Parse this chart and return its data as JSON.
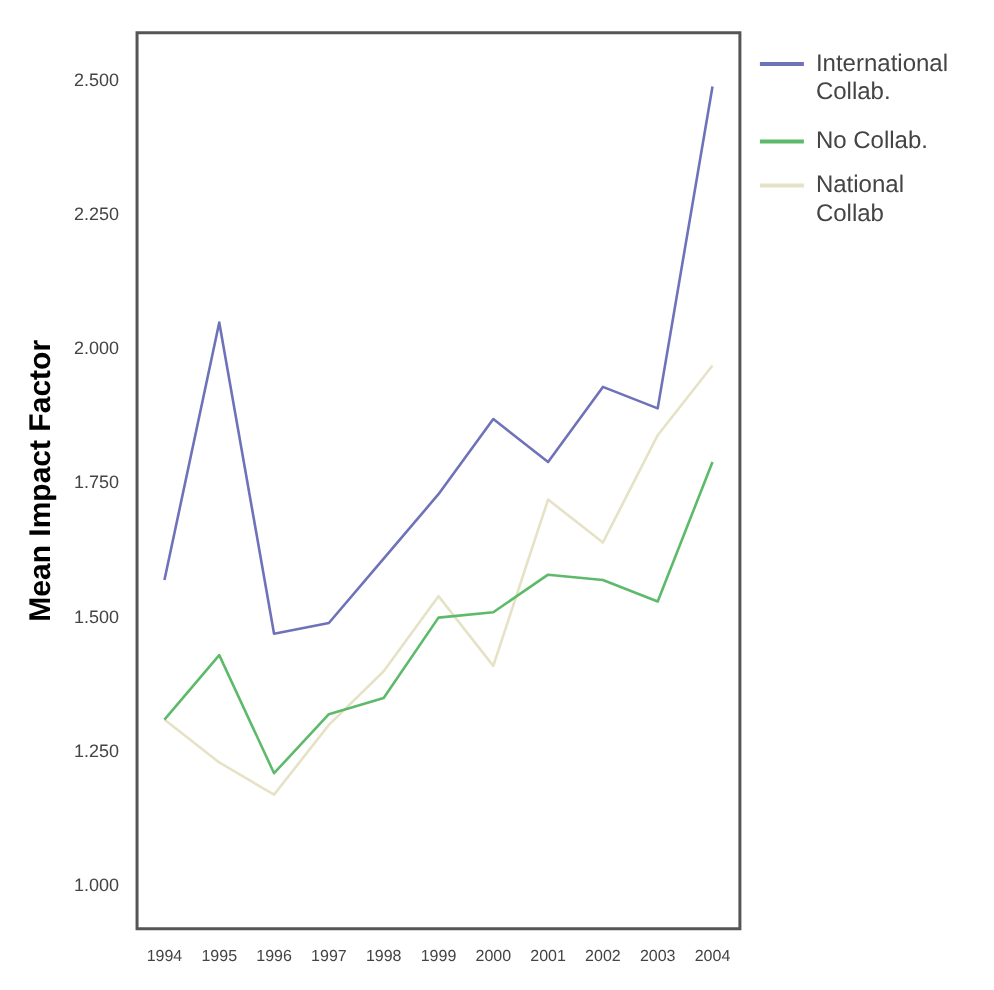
{
  "chart_data": {
    "type": "line",
    "ylabel": "Mean Impact Factor",
    "categories": [
      "1994",
      "1995",
      "1996",
      "1997",
      "1998",
      "1999",
      "2000",
      "2001",
      "2002",
      "2003",
      "2004"
    ],
    "series": [
      {
        "name": "International Collab.",
        "color": "#6e72b8",
        "values": [
          1.57,
          2.05,
          1.47,
          1.49,
          1.61,
          1.73,
          1.87,
          1.79,
          1.93,
          1.89,
          2.49
        ]
      },
      {
        "name": "No Collab.",
        "color": "#5dba6a",
        "values": [
          1.31,
          1.43,
          1.21,
          1.32,
          1.35,
          1.5,
          1.51,
          1.58,
          1.57,
          1.53,
          1.79
        ]
      },
      {
        "name": "National Collab",
        "color": "#e6e2c6",
        "values": [
          1.31,
          1.23,
          1.17,
          1.3,
          1.4,
          1.54,
          1.41,
          1.72,
          1.64,
          1.84,
          1.97
        ]
      }
    ],
    "ylim": [
      0.92,
      2.59
    ],
    "yticks": [
      {
        "value": 1,
        "label": "1.000"
      },
      {
        "value": 1.25,
        "label": "1.250"
      },
      {
        "value": 1.5,
        "label": "1.500"
      },
      {
        "value": 1.75,
        "label": "1.750"
      },
      {
        "value": 2,
        "label": "2.000"
      },
      {
        "value": 2.25,
        "label": "2.250"
      },
      {
        "value": 2.5,
        "label": "2.500"
      }
    ],
    "grid": false,
    "legend": "right",
    "marker": "none",
    "line_style": "solid"
  }
}
